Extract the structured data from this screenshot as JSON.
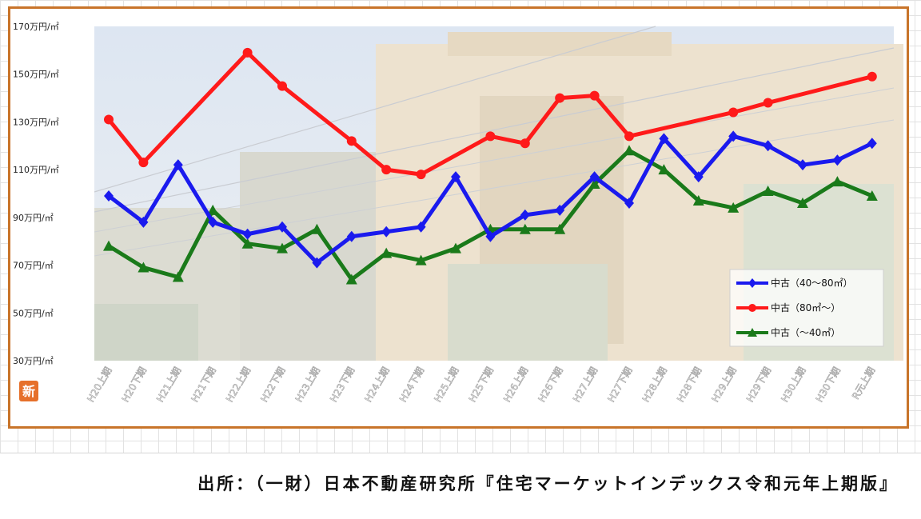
{
  "chart_data": {
    "type": "line",
    "title": "",
    "xlabel": "",
    "ylabel": "",
    "ylim": [
      30,
      170
    ],
    "yticks": [
      {
        "value": 30,
        "label": "30万円/㎡"
      },
      {
        "value": 50,
        "label": "50万円/㎡"
      },
      {
        "value": 70,
        "label": "70万円/㎡"
      },
      {
        "value": 90,
        "label": "90万円/㎡"
      },
      {
        "value": 110,
        "label": "110万円/㎡"
      },
      {
        "value": 130,
        "label": "130万円/㎡"
      },
      {
        "value": 150,
        "label": "150万円/㎡"
      },
      {
        "value": 170,
        "label": "170万円/㎡"
      }
    ],
    "categories": [
      "H20上期",
      "H20下期",
      "H21上期",
      "H21下期",
      "H22上期",
      "H22下期",
      "H23上期",
      "H23下期",
      "H24上期",
      "H24下期",
      "H25上期",
      "H25下期",
      "H26上期",
      "H26下期",
      "H27上期",
      "H27下期",
      "H28上期",
      "H28下期",
      "H29上期",
      "H29下期",
      "H30上期",
      "H30下期",
      "R元上期"
    ],
    "grid": false,
    "legend_position": "bottom-right",
    "series": [
      {
        "name": "中古（40～80㎡）",
        "color": "#1a1aee",
        "marker": "diamond",
        "values": [
          99,
          88,
          112,
          88,
          83,
          86,
          71,
          82,
          84,
          86,
          107,
          82,
          91,
          93,
          107,
          96,
          123,
          107,
          124,
          120,
          112,
          114,
          121
        ]
      },
      {
        "name": "中古（80㎡～）",
        "color": "#ff1a1a",
        "marker": "circle",
        "values": [
          131,
          113,
          null,
          null,
          159,
          145,
          null,
          122,
          110,
          108,
          null,
          124,
          121,
          140,
          141,
          124,
          null,
          null,
          134,
          138,
          null,
          null,
          149
        ]
      },
      {
        "name": "中古（～40㎡）",
        "color": "#1a7a1a",
        "marker": "triangle",
        "values": [
          78,
          69,
          65,
          93,
          79,
          77,
          85,
          64,
          75,
          72,
          77,
          85,
          85,
          85,
          104,
          118,
          110,
          97,
          94,
          101,
          96,
          105,
          99
        ]
      }
    ]
  },
  "watermark": {
    "label": "新"
  },
  "source": {
    "text": "出所：（一財）日本不動産研究所『住宅マーケットインデックス令和元年上期版』"
  }
}
